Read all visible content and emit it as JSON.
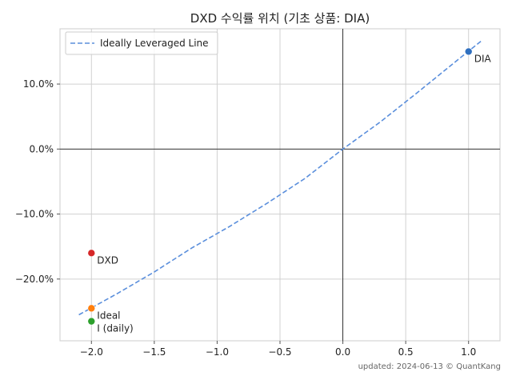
{
  "chart_data": {
    "type": "scatter",
    "title": "DXD 수익률 위치 (기초 상품: DIA)",
    "xlabel": "",
    "ylabel": "",
    "xlim": [
      -2.25,
      1.25
    ],
    "ylim": [
      -29.5,
      18.5
    ],
    "x_ticks": [
      -2.0,
      -1.5,
      -1.0,
      -0.5,
      0.0,
      0.5,
      1.0
    ],
    "x_tick_labels": [
      "−2.0",
      "−1.5",
      "−1.0",
      "−0.5",
      "0.0",
      "0.5",
      "1.0"
    ],
    "y_ticks": [
      10,
      0,
      -10,
      -20
    ],
    "y_tick_labels": [
      "10.0%",
      "0.0%",
      "−10.0%",
      "−20.0%"
    ],
    "grid": true,
    "legend_position": "top-left",
    "line": {
      "name": "Ideally Leveraged Line",
      "style": "dashed",
      "color": "#5b8fdc",
      "x": [
        -2.1,
        -1.8,
        -1.5,
        -1.2,
        -0.9,
        -0.6,
        -0.3,
        0.0,
        0.3,
        0.6,
        0.9,
        1.1
      ],
      "y": [
        -25.5,
        -22.3,
        -18.9,
        -15.2,
        -11.9,
        -8.3,
        -4.5,
        0.0,
        4.2,
        8.8,
        13.5,
        16.6
      ]
    },
    "points": [
      {
        "label": "DIA",
        "x": 1.0,
        "y": 15.0,
        "color": "#2f6fbf"
      },
      {
        "label": "DXD",
        "x": -2.0,
        "y": -16.0,
        "color": "#d62728"
      },
      {
        "label": "Ideal",
        "x": -2.0,
        "y": -24.5,
        "color": "#ff7f0e"
      },
      {
        "label": "I (daily)",
        "x": -2.0,
        "y": -26.5,
        "color": "#2ca02c"
      }
    ]
  },
  "footer": "updated: 2024-06-13 © QuantKang"
}
